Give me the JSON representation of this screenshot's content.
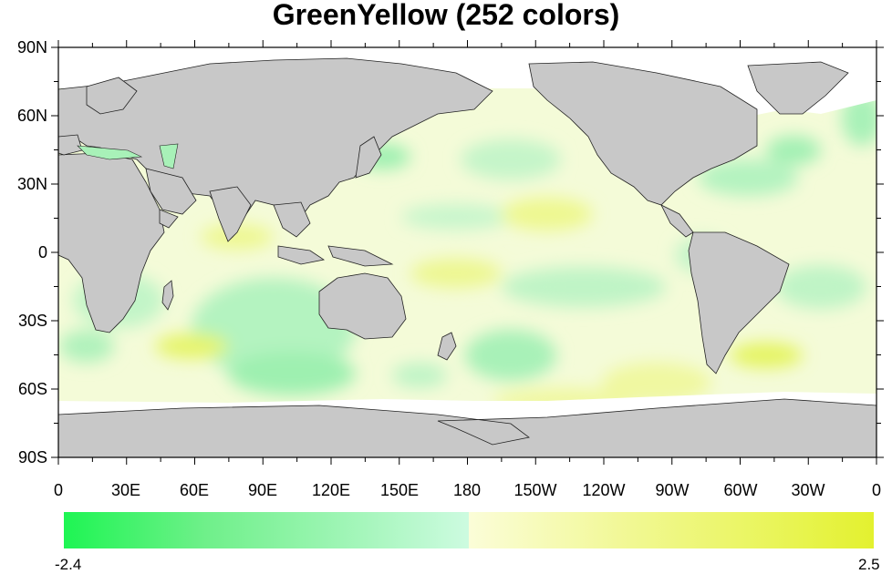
{
  "title": "GreenYellow (252 colors)",
  "y_ticks": [
    "90N",
    "60N",
    "30N",
    "0",
    "30S",
    "60S",
    "90S"
  ],
  "x_ticks": [
    "0",
    "30E",
    "60E",
    "90E",
    "120E",
    "150E",
    "180",
    "150W",
    "120W",
    "90W",
    "60W",
    "30W",
    "0"
  ],
  "colorbar": {
    "min_label": "-2.4",
    "max_label": "2.5",
    "colors": {
      "neg_end": "#1ef553",
      "neg_light": "#cdfbe0",
      "pos_light": "#fbfdd8",
      "pos_end": "#e3f12f"
    }
  },
  "map": {
    "land_color": "#c8c8c8",
    "ice_color": "#ffffff",
    "ocean_base_color": "#f4fbd8"
  }
}
